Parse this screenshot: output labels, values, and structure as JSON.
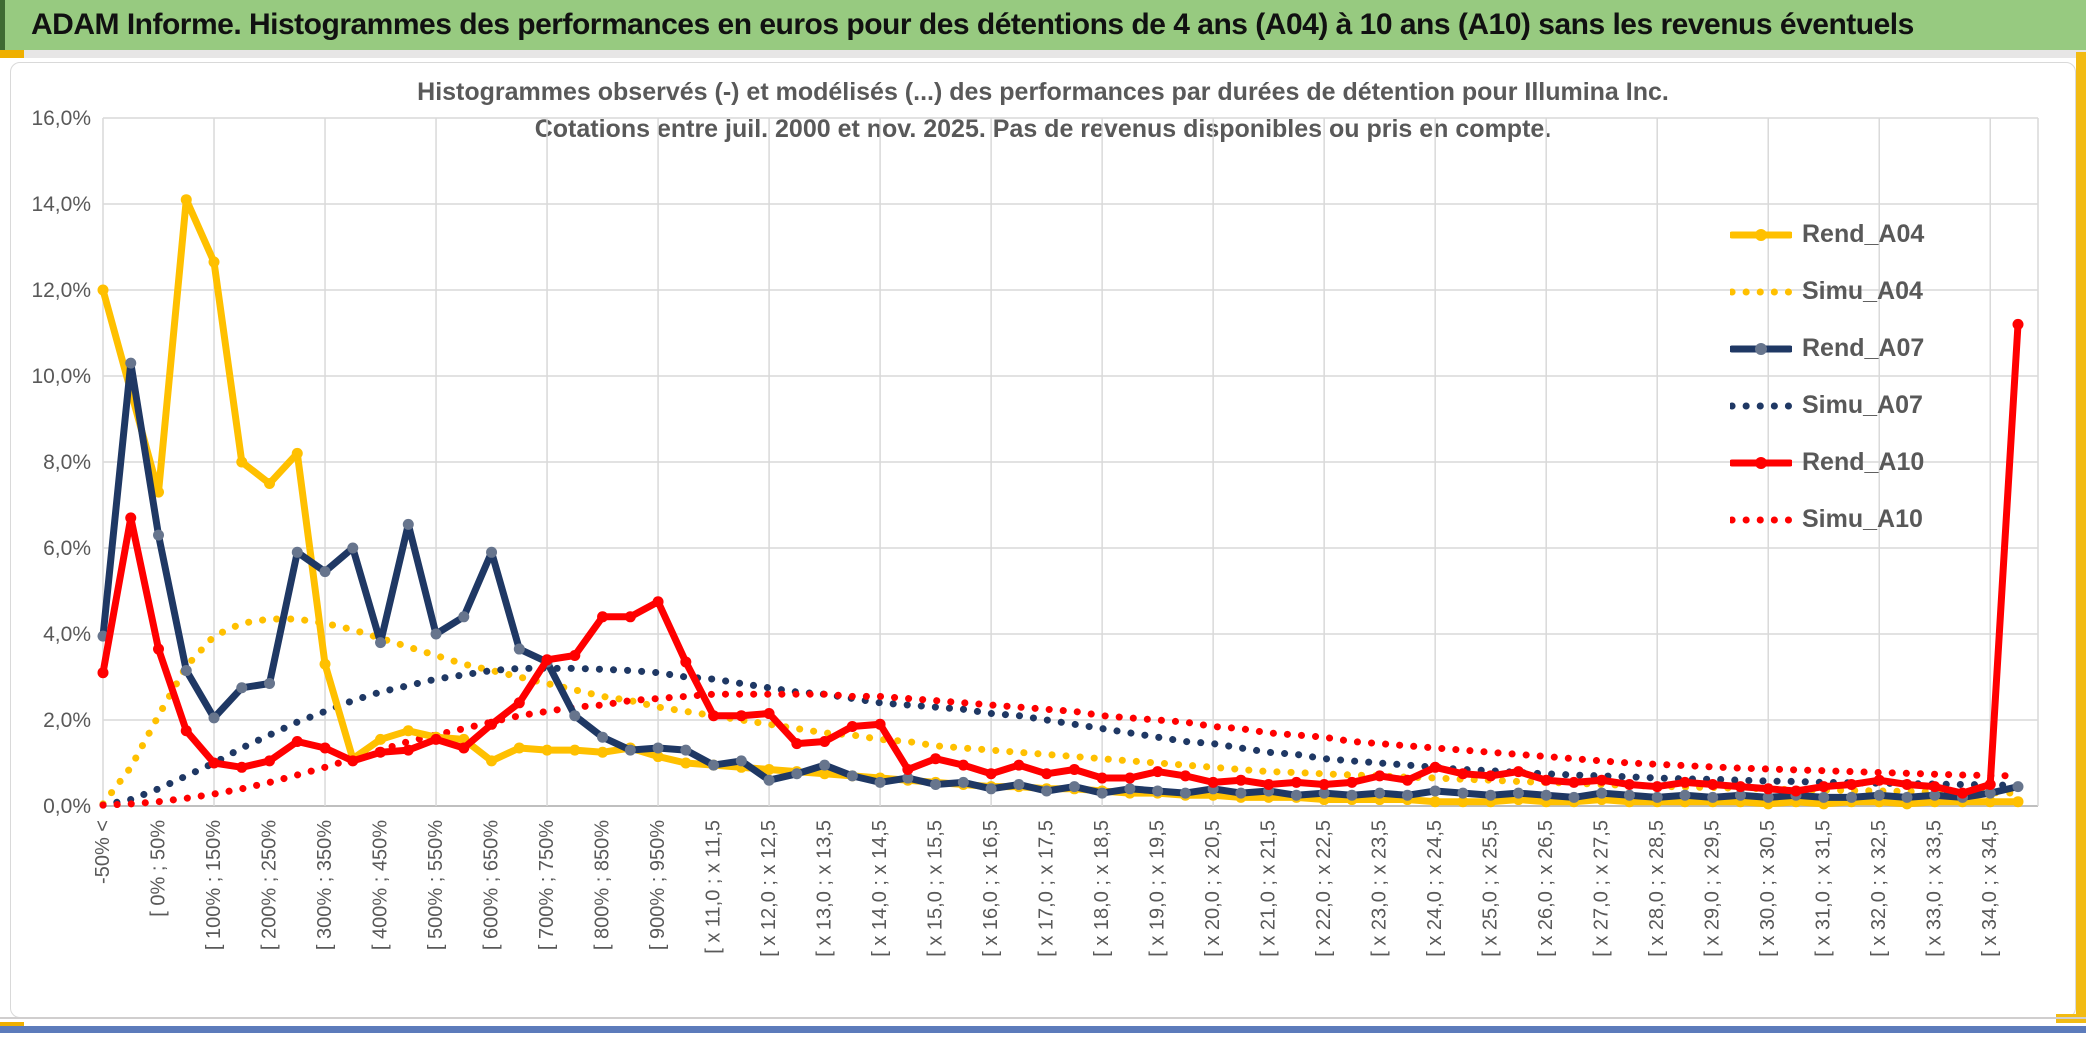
{
  "window": {
    "title": "ADAM Informe. Histogrammes des performances en euros pour des détentions de 4 ans (A04) à 10 ans (A10) sans les revenus éventuels"
  },
  "chart_data": {
    "type": "line",
    "title_line1": "Histogrammes observés (-) et modélisés (...) des performances par durées de détention pour Illumina Inc.",
    "title_line2": "Cotations entre juil. 2000 et nov. 2025. Pas de revenus disponibles ou pris en compte.",
    "ylabel": "",
    "xlabel": "",
    "ylim": [
      0,
      16
    ],
    "y_tick_step_pct": 2,
    "y_ticks": [
      "16,0%",
      "14,0%",
      "12,0%",
      "10,0%",
      "8,0%",
      "6,0%",
      "4,0%",
      "2,0%",
      "0,0%"
    ],
    "grid": true,
    "legend_position": "right-inside",
    "n_categories": 70,
    "x_labels_every": 2,
    "x_labels": [
      "-50% <",
      "[ 0% ; 50%",
      "[ 100% ; 150%",
      "[ 200% ; 250%",
      "[ 300% ; 350%",
      "[ 400% ; 450%",
      "[ 500% ; 550%",
      "[ 600% ; 650%",
      "[ 700% ; 750%",
      "[ 800% ; 850%",
      "[ 900% ; 950%",
      "[ x 11,0 ; x 11,5",
      "[ x 12,0 ; x 12,5",
      "[ x 13,0 ; x 13,5",
      "[ x 14,0 ; x 14,5",
      "[ x 15,0 ; x 15,5",
      "[ x 16,0 ; x 16,5",
      "[ x 17,0 ; x 17,5",
      "[ x 18,0 ; x 18,5",
      "[ x 19,0 ; x 19,5",
      "[ x 20,0 ; x 20,5",
      "[ x 21,0 ; x 21,5",
      "[ x 22,0 ; x 22,5",
      "[ x 23,0 ; x 23,5",
      "[ x 24,0 ; x 24,5",
      "[ x 25,0 ; x 25,5",
      "[ x 26,0 ; x 26,5",
      "[ x 27,0 ; x 27,5",
      "[ x 28,0 ; x 28,5",
      "[ x 29,0 ; x 29,5",
      "[ x 30,0 ; x 30,5",
      "[ x 31,0 ; x 31,5",
      "[ x 32,0 ; x 32,5",
      "[ x 33,0 ; x 33,5",
      "[ x 34,0 ; x 34,5"
    ],
    "series": [
      {
        "name": "Simu_A04",
        "style": "dotted",
        "color": "#FFC000",
        "values": [
          0.05,
          0.9,
          2.1,
          3.25,
          3.95,
          4.25,
          4.35,
          4.35,
          4.25,
          4.1,
          3.9,
          3.7,
          3.5,
          3.3,
          3.15,
          3.0,
          2.85,
          2.7,
          2.55,
          2.45,
          2.3,
          2.2,
          2.1,
          2.0,
          1.9,
          1.8,
          1.7,
          1.65,
          1.55,
          1.5,
          1.4,
          1.35,
          1.3,
          1.25,
          1.2,
          1.15,
          1.1,
          1.05,
          1.0,
          0.95,
          0.9,
          0.85,
          0.8,
          0.78,
          0.75,
          0.72,
          0.7,
          0.67,
          0.65,
          0.62,
          0.6,
          0.57,
          0.55,
          0.53,
          0.5,
          0.48,
          0.46,
          0.44,
          0.43,
          0.41,
          0.4,
          0.38,
          0.37,
          0.36,
          0.35,
          0.34,
          0.33,
          0.32,
          0.31,
          0.3
        ]
      },
      {
        "name": "Simu_A07",
        "style": "dotted",
        "color": "#1F3864",
        "values": [
          0.02,
          0.15,
          0.4,
          0.7,
          1.0,
          1.35,
          1.65,
          1.95,
          2.2,
          2.45,
          2.65,
          2.8,
          2.95,
          3.05,
          3.15,
          3.2,
          3.2,
          3.2,
          3.18,
          3.15,
          3.1,
          3.0,
          2.95,
          2.85,
          2.75,
          2.65,
          2.6,
          2.5,
          2.4,
          2.35,
          2.3,
          2.25,
          2.15,
          2.1,
          2.0,
          1.9,
          1.8,
          1.7,
          1.6,
          1.5,
          1.45,
          1.35,
          1.25,
          1.2,
          1.1,
          1.05,
          1.0,
          0.95,
          0.9,
          0.85,
          0.82,
          0.78,
          0.75,
          0.72,
          0.7,
          0.68,
          0.65,
          0.63,
          0.62,
          0.6,
          0.58,
          0.57,
          0.55,
          0.54,
          0.53,
          0.52,
          0.51,
          0.5,
          0.49,
          0.48
        ]
      },
      {
        "name": "Simu_A10",
        "style": "dotted",
        "color": "#FF0000",
        "values": [
          0.02,
          0.05,
          0.1,
          0.18,
          0.28,
          0.4,
          0.55,
          0.72,
          0.9,
          1.1,
          1.3,
          1.5,
          1.65,
          1.8,
          1.95,
          2.1,
          2.2,
          2.3,
          2.35,
          2.45,
          2.5,
          2.55,
          2.6,
          2.6,
          2.6,
          2.6,
          2.6,
          2.55,
          2.55,
          2.5,
          2.45,
          2.4,
          2.35,
          2.3,
          2.25,
          2.2,
          2.1,
          2.05,
          2.0,
          1.95,
          1.85,
          1.8,
          1.7,
          1.65,
          1.6,
          1.5,
          1.45,
          1.4,
          1.35,
          1.3,
          1.25,
          1.2,
          1.15,
          1.1,
          1.05,
          1.0,
          0.97,
          0.94,
          0.91,
          0.88,
          0.86,
          0.84,
          0.82,
          0.8,
          0.78,
          0.76,
          0.74,
          0.72,
          0.71,
          0.7
        ]
      },
      {
        "name": "Rend_A04",
        "style": "solid",
        "color": "#FFC000",
        "marker": "#FFC000",
        "values": [
          12.0,
          9.65,
          7.3,
          14.1,
          12.65,
          8.0,
          7.5,
          8.2,
          3.3,
          1.1,
          1.55,
          1.75,
          1.6,
          1.55,
          1.05,
          1.35,
          1.3,
          1.3,
          1.25,
          1.35,
          1.15,
          1.0,
          0.95,
          0.9,
          0.85,
          0.8,
          0.75,
          0.7,
          0.65,
          0.6,
          0.55,
          0.5,
          0.45,
          0.45,
          0.4,
          0.4,
          0.35,
          0.3,
          0.3,
          0.25,
          0.25,
          0.2,
          0.2,
          0.2,
          0.15,
          0.15,
          0.15,
          0.15,
          0.1,
          0.1,
          0.1,
          0.15,
          0.1,
          0.1,
          0.15,
          0.1,
          0.1,
          0.1,
          0.1,
          0.1,
          0.05,
          0.1,
          0.05,
          0.1,
          0.1,
          0.05,
          0.1,
          0.1,
          0.1,
          0.1
        ]
      },
      {
        "name": "Rend_A07",
        "style": "solid",
        "color": "#1F3864",
        "marker": "#67758D",
        "values": [
          3.95,
          10.3,
          6.3,
          3.15,
          2.05,
          2.75,
          2.85,
          5.9,
          5.45,
          6.0,
          3.8,
          6.55,
          4.0,
          4.4,
          5.9,
          3.65,
          3.35,
          2.1,
          1.6,
          1.3,
          1.35,
          1.3,
          0.95,
          1.05,
          0.6,
          0.75,
          0.95,
          0.7,
          0.55,
          0.65,
          0.5,
          0.55,
          0.4,
          0.5,
          0.35,
          0.45,
          0.3,
          0.4,
          0.35,
          0.3,
          0.4,
          0.3,
          0.35,
          0.25,
          0.3,
          0.25,
          0.3,
          0.25,
          0.35,
          0.3,
          0.25,
          0.3,
          0.25,
          0.2,
          0.3,
          0.25,
          0.2,
          0.25,
          0.2,
          0.25,
          0.2,
          0.25,
          0.2,
          0.2,
          0.25,
          0.2,
          0.25,
          0.2,
          0.3,
          0.45
        ]
      },
      {
        "name": "Rend_A10",
        "style": "solid",
        "color": "#FF0000",
        "marker": "#FF0000",
        "values": [
          3.1,
          6.7,
          3.65,
          1.75,
          1.0,
          0.9,
          1.05,
          1.5,
          1.35,
          1.05,
          1.25,
          1.3,
          1.55,
          1.35,
          1.9,
          2.4,
          3.4,
          3.5,
          4.4,
          4.4,
          4.75,
          3.35,
          2.1,
          2.1,
          2.15,
          1.45,
          1.5,
          1.85,
          1.9,
          0.85,
          1.1,
          0.95,
          0.75,
          0.95,
          0.75,
          0.85,
          0.65,
          0.65,
          0.8,
          0.7,
          0.55,
          0.6,
          0.5,
          0.55,
          0.5,
          0.55,
          0.7,
          0.6,
          0.9,
          0.75,
          0.7,
          0.8,
          0.6,
          0.55,
          0.6,
          0.5,
          0.45,
          0.55,
          0.5,
          0.45,
          0.4,
          0.35,
          0.45,
          0.5,
          0.6,
          0.5,
          0.45,
          0.3,
          0.5,
          11.2
        ]
      }
    ],
    "legend_order": [
      "Rend_A04",
      "Simu_A04",
      "Rend_A07",
      "Simu_A07",
      "Rend_A10",
      "Simu_A10"
    ]
  },
  "colors": {
    "title_bar_bg": "#97CA80",
    "title_bar_edge": "#3F6B33",
    "accent_gold": "#FFC000",
    "accent_navy": "#1F3864",
    "accent_red": "#FF0000",
    "grid": "#D9D9D9",
    "axis_text": "#595959",
    "bottom_bar": "#5C7BBB",
    "side_tab": "#EFAF00"
  }
}
